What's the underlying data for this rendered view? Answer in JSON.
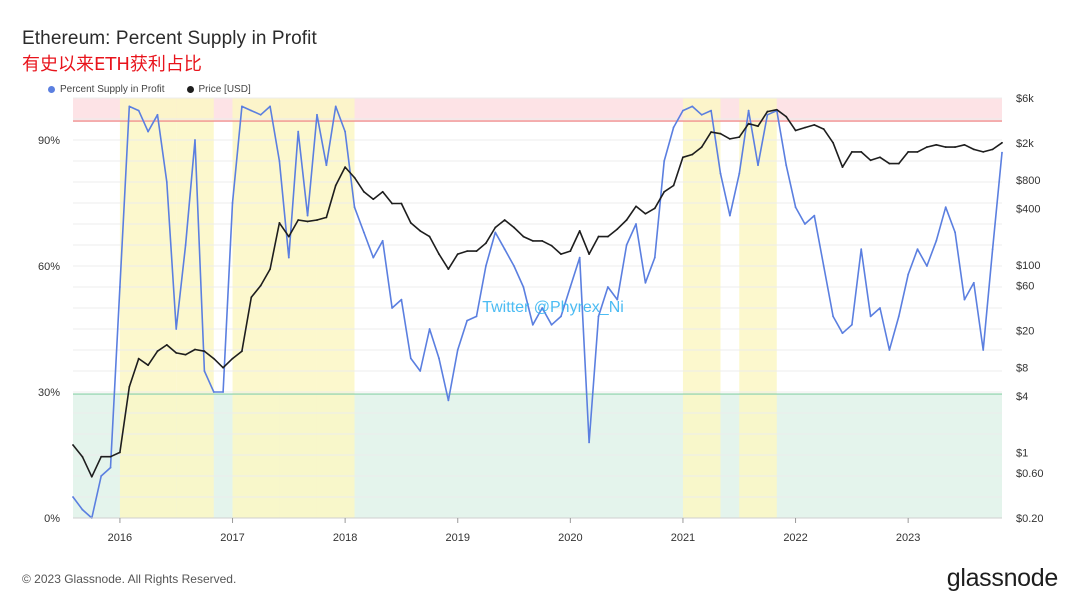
{
  "header": {
    "title": "Ethereum: Percent Supply in Profit",
    "subtitle": "有史以来ETH获利占比"
  },
  "footer": {
    "copyright": "© 2023 Glassnode. All Rights Reserved.",
    "brand": "glassnode"
  },
  "watermark": "Twitter @Phyrex_Ni",
  "colors": {
    "supply": "#5b7fe0",
    "price": "#1e1e1e",
    "top_zone": "#fde3e6",
    "top_line": "#f09090",
    "bottom_zone": "#e4f4ec",
    "bottom_line": "#9ad6b4",
    "highlight": "#fbf7c4"
  },
  "chart_data": {
    "type": "line",
    "legend_position": "top-left",
    "grid": true,
    "x_ticks": [
      "2016",
      "2017",
      "2018",
      "2019",
      "2020",
      "2021",
      "2022",
      "2023"
    ],
    "xlim": [
      "2015-08",
      "2023-11"
    ],
    "y_left": {
      "ticks": [
        "0%",
        "30%",
        "60%",
        "90%"
      ],
      "tick_values": [
        0,
        30,
        60,
        90
      ],
      "range": [
        0,
        100
      ],
      "thresholds": [
        29.5,
        94.5
      ]
    },
    "y_right": {
      "scale": "log",
      "ticks": [
        "$0.20",
        "$0.60",
        "$1",
        "$4",
        "$8",
        "$20",
        "$60",
        "$100",
        "$400",
        "$800",
        "$2k",
        "$6k"
      ],
      "tick_values": [
        0.2,
        0.6,
        1,
        4,
        8,
        20,
        60,
        100,
        400,
        800,
        2000,
        6000
      ],
      "range": [
        0.2,
        6000
      ]
    },
    "highlight_periods": [
      [
        "2016-01",
        "2016-07"
      ],
      [
        "2016-07",
        "2016-11"
      ],
      [
        "2017-01",
        "2017-06"
      ],
      [
        "2017-06",
        "2017-10"
      ],
      [
        "2017-10",
        "2018-02"
      ],
      [
        "2021-01",
        "2021-05"
      ],
      [
        "2021-07",
        "2021-11"
      ]
    ],
    "series": [
      {
        "name": "Percent Supply in Profit",
        "axis": "left",
        "x": [
          "2015-08",
          "2015-09",
          "2015-10",
          "2015-11",
          "2015-12",
          "2016-01",
          "2016-02",
          "2016-03",
          "2016-04",
          "2016-05",
          "2016-06",
          "2016-07",
          "2016-08",
          "2016-09",
          "2016-10",
          "2016-11",
          "2016-12",
          "2017-01",
          "2017-02",
          "2017-03",
          "2017-04",
          "2017-05",
          "2017-06",
          "2017-07",
          "2017-08",
          "2017-09",
          "2017-10",
          "2017-11",
          "2017-12",
          "2018-01",
          "2018-02",
          "2018-03",
          "2018-04",
          "2018-05",
          "2018-06",
          "2018-07",
          "2018-08",
          "2018-09",
          "2018-10",
          "2018-11",
          "2018-12",
          "2019-01",
          "2019-02",
          "2019-03",
          "2019-04",
          "2019-05",
          "2019-06",
          "2019-07",
          "2019-08",
          "2019-09",
          "2019-10",
          "2019-11",
          "2019-12",
          "2020-01",
          "2020-02",
          "2020-03",
          "2020-04",
          "2020-05",
          "2020-06",
          "2020-07",
          "2020-08",
          "2020-09",
          "2020-10",
          "2020-11",
          "2020-12",
          "2021-01",
          "2021-02",
          "2021-03",
          "2021-04",
          "2021-05",
          "2021-06",
          "2021-07",
          "2021-08",
          "2021-09",
          "2021-10",
          "2021-11",
          "2021-12",
          "2022-01",
          "2022-02",
          "2022-03",
          "2022-04",
          "2022-05",
          "2022-06",
          "2022-07",
          "2022-08",
          "2022-09",
          "2022-10",
          "2022-11",
          "2022-12",
          "2023-01",
          "2023-02",
          "2023-03",
          "2023-04",
          "2023-05",
          "2023-06",
          "2023-07",
          "2023-08",
          "2023-09",
          "2023-10",
          "2023-11"
        ],
        "values": [
          5,
          2,
          0,
          10,
          12,
          55,
          98,
          97,
          92,
          96,
          80,
          45,
          65,
          90,
          35,
          30,
          30,
          75,
          98,
          97,
          96,
          98,
          85,
          62,
          92,
          72,
          96,
          84,
          98,
          92,
          74,
          68,
          62,
          66,
          50,
          52,
          38,
          35,
          45,
          38,
          28,
          40,
          47,
          48,
          60,
          68,
          64,
          60,
          55,
          46,
          50,
          46,
          48,
          55,
          62,
          18,
          48,
          55,
          52,
          65,
          70,
          56,
          62,
          85,
          93,
          97,
          98,
          96,
          97,
          82,
          72,
          82,
          97,
          84,
          96,
          97,
          84,
          74,
          70,
          72,
          60,
          48,
          44,
          46,
          64,
          48,
          50,
          40,
          48,
          58,
          64,
          60,
          66,
          74,
          68,
          52,
          56,
          40,
          64,
          87
        ]
      },
      {
        "name": "Price [USD]",
        "axis": "right",
        "x": [
          "2015-08",
          "2015-09",
          "2015-10",
          "2015-11",
          "2015-12",
          "2016-01",
          "2016-02",
          "2016-03",
          "2016-04",
          "2016-05",
          "2016-06",
          "2016-07",
          "2016-08",
          "2016-09",
          "2016-10",
          "2016-11",
          "2016-12",
          "2017-01",
          "2017-02",
          "2017-03",
          "2017-04",
          "2017-05",
          "2017-06",
          "2017-07",
          "2017-08",
          "2017-09",
          "2017-10",
          "2017-11",
          "2017-12",
          "2018-01",
          "2018-02",
          "2018-03",
          "2018-04",
          "2018-05",
          "2018-06",
          "2018-07",
          "2018-08",
          "2018-09",
          "2018-10",
          "2018-11",
          "2018-12",
          "2019-01",
          "2019-02",
          "2019-03",
          "2019-04",
          "2019-05",
          "2019-06",
          "2019-07",
          "2019-08",
          "2019-09",
          "2019-10",
          "2019-11",
          "2019-12",
          "2020-01",
          "2020-02",
          "2020-03",
          "2020-04",
          "2020-05",
          "2020-06",
          "2020-07",
          "2020-08",
          "2020-09",
          "2020-10",
          "2020-11",
          "2020-12",
          "2021-01",
          "2021-02",
          "2021-03",
          "2021-04",
          "2021-05",
          "2021-06",
          "2021-07",
          "2021-08",
          "2021-09",
          "2021-10",
          "2021-11",
          "2021-12",
          "2022-01",
          "2022-02",
          "2022-03",
          "2022-04",
          "2022-05",
          "2022-06",
          "2022-07",
          "2022-08",
          "2022-09",
          "2022-10",
          "2022-11",
          "2022-12",
          "2023-01",
          "2023-02",
          "2023-03",
          "2023-04",
          "2023-05",
          "2023-06",
          "2023-07",
          "2023-08",
          "2023-09",
          "2023-10",
          "2023-11"
        ],
        "values": [
          1.2,
          0.9,
          0.55,
          0.9,
          0.9,
          1.0,
          5.0,
          10.0,
          8.5,
          12.0,
          14.0,
          11.5,
          11.0,
          12.5,
          12.0,
          10.0,
          8.0,
          10.0,
          12.0,
          45,
          60,
          90,
          280,
          200,
          300,
          290,
          300,
          320,
          700,
          1100,
          850,
          600,
          500,
          600,
          450,
          450,
          280,
          230,
          200,
          130,
          90,
          130,
          140,
          140,
          170,
          250,
          300,
          250,
          200,
          180,
          180,
          160,
          130,
          140,
          230,
          130,
          200,
          200,
          240,
          300,
          420,
          350,
          400,
          600,
          700,
          1400,
          1500,
          1800,
          2600,
          2500,
          2200,
          2300,
          3200,
          3000,
          4300,
          4500,
          3800,
          2700,
          2900,
          3100,
          2800,
          2000,
          1100,
          1600,
          1600,
          1300,
          1400,
          1200,
          1200,
          1600,
          1600,
          1800,
          1900,
          1800,
          1800,
          1900,
          1700,
          1600,
          1700,
          2000
        ]
      }
    ]
  }
}
